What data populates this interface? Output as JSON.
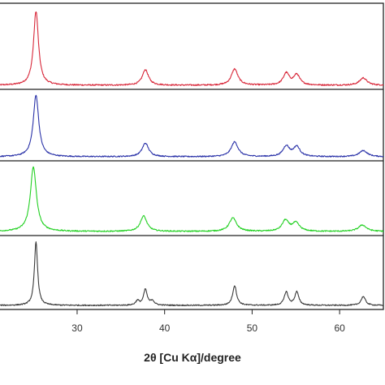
{
  "chart_data": {
    "type": "line",
    "title": "",
    "xlabel": "2θ [Cu Kα]/degree",
    "ylabel": "",
    "xlim": [
      21,
      65
    ],
    "x_ticks": [
      30,
      40,
      50,
      60
    ],
    "x_tick_labels": [
      "30",
      "40",
      "50",
      "60"
    ],
    "grid": false,
    "legend": "none",
    "layout": "stacked-panels",
    "series": [
      {
        "color": "#d8283a",
        "peaks": [
          {
            "x": 25.3,
            "height": 1.0,
            "width": 0.34
          },
          {
            "x": 37.8,
            "height": 0.21,
            "width": 0.42
          },
          {
            "x": 48.0,
            "height": 0.22,
            "width": 0.45
          },
          {
            "x": 53.9,
            "height": 0.16,
            "width": 0.42
          },
          {
            "x": 55.1,
            "height": 0.14,
            "width": 0.42
          },
          {
            "x": 62.7,
            "height": 0.1,
            "width": 0.5
          }
        ]
      },
      {
        "color": "#2a32a8",
        "peaks": [
          {
            "x": 25.3,
            "height": 1.0,
            "width": 0.38
          },
          {
            "x": 37.8,
            "height": 0.22,
            "width": 0.45
          },
          {
            "x": 48.0,
            "height": 0.24,
            "width": 0.48
          },
          {
            "x": 53.9,
            "height": 0.17,
            "width": 0.45
          },
          {
            "x": 55.1,
            "height": 0.16,
            "width": 0.45
          },
          {
            "x": 62.7,
            "height": 0.1,
            "width": 0.55
          }
        ]
      },
      {
        "color": "#22d022",
        "peaks": [
          {
            "x": 25.0,
            "height": 1.0,
            "width": 0.42
          },
          {
            "x": 37.6,
            "height": 0.24,
            "width": 0.45
          },
          {
            "x": 47.8,
            "height": 0.21,
            "width": 0.5
          },
          {
            "x": 53.8,
            "height": 0.17,
            "width": 0.45
          },
          {
            "x": 55.0,
            "height": 0.13,
            "width": 0.5
          },
          {
            "x": 62.6,
            "height": 0.1,
            "width": 0.55
          }
        ]
      },
      {
        "color": "#3a3a3a",
        "peaks": [
          {
            "x": 25.3,
            "height": 1.0,
            "width": 0.22
          },
          {
            "x": 36.9,
            "height": 0.07,
            "width": 0.25
          },
          {
            "x": 37.8,
            "height": 0.25,
            "width": 0.25
          },
          {
            "x": 38.6,
            "height": 0.07,
            "width": 0.25
          },
          {
            "x": 48.0,
            "height": 0.31,
            "width": 0.27
          },
          {
            "x": 53.9,
            "height": 0.21,
            "width": 0.27
          },
          {
            "x": 55.1,
            "height": 0.21,
            "width": 0.27
          },
          {
            "x": 62.7,
            "height": 0.14,
            "width": 0.3
          }
        ]
      }
    ]
  }
}
